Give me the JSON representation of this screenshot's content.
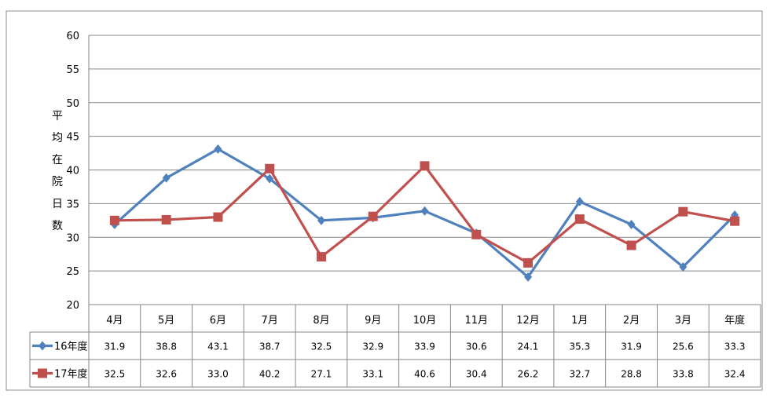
{
  "chart_data": {
    "type": "line",
    "ylabel": "平均在院日数",
    "ylim": [
      20,
      60
    ],
    "yticks": [
      "20",
      "25",
      "30",
      "35",
      "40",
      "45",
      "50",
      "55",
      "60"
    ],
    "grid": true,
    "legend": "data-table",
    "categories": [
      "4月",
      "5月",
      "6月",
      "7月",
      "8月",
      "9月",
      "10月",
      "11月",
      "12月",
      "1月",
      "2月",
      "3月",
      "年度"
    ],
    "series": [
      {
        "name": "16年度",
        "color": "#4F81BD",
        "marker": "diamond",
        "values": [
          31.9,
          38.8,
          43.1,
          38.7,
          32.5,
          32.9,
          33.9,
          30.6,
          24.1,
          35.3,
          31.9,
          25.6,
          33.3
        ],
        "labels": [
          "31.9",
          "38.8",
          "43.1",
          "38.7",
          "32.5",
          "32.9",
          "33.9",
          "30.6",
          "24.1",
          "35.3",
          "31.9",
          "25.6",
          "33.3"
        ]
      },
      {
        "name": "17年度",
        "color": "#C0504D",
        "marker": "square",
        "values": [
          32.5,
          32.6,
          33.0,
          40.2,
          27.1,
          33.1,
          40.6,
          30.4,
          26.2,
          32.7,
          28.8,
          33.8,
          32.4
        ],
        "labels": [
          "32.5",
          "32.6",
          "33.0",
          "40.2",
          "27.1",
          "33.1",
          "40.6",
          "30.4",
          "26.2",
          "32.7",
          "28.8",
          "33.8",
          "32.4"
        ]
      }
    ]
  }
}
